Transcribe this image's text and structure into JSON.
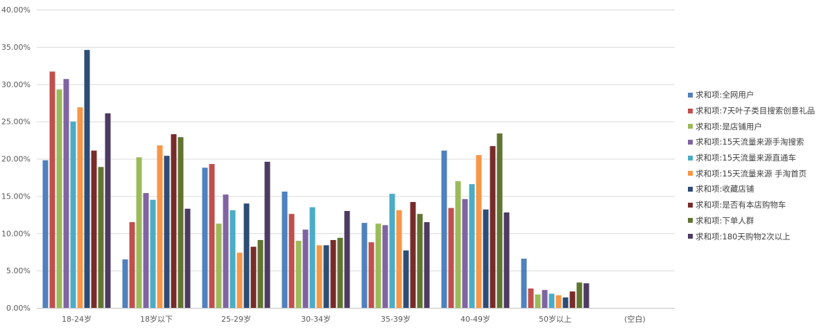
{
  "chart_data": {
    "type": "bar",
    "title": "",
    "xlabel": "",
    "ylabel": "",
    "ylim": [
      0,
      40
    ],
    "yticks": [
      "0.00%",
      "5.00%",
      "10.00%",
      "15.00%",
      "20.00%",
      "25.00%",
      "30.00%",
      "35.00%",
      "40.00%"
    ],
    "grid": true,
    "legend_position": "right",
    "categories": [
      "18-24岁",
      "18岁以下",
      "25-29岁",
      "30-34岁",
      "35-39岁",
      "40-49岁",
      "50岁以上",
      "(空白)"
    ],
    "series": [
      {
        "name": "求和项:全网用户",
        "color": "#4f81bd",
        "values": [
          19.8,
          6.5,
          18.8,
          15.6,
          11.4,
          21.1,
          6.6,
          null
        ]
      },
      {
        "name": "求和项:7天叶子类目搜索创意礼品",
        "color": "#c0504d",
        "values": [
          31.7,
          11.5,
          19.3,
          12.6,
          8.8,
          13.4,
          2.6,
          null
        ]
      },
      {
        "name": "求和项:是店铺用户",
        "color": "#9bbb59",
        "values": [
          29.3,
          20.2,
          11.3,
          9.0,
          11.3,
          17.0,
          1.8,
          null
        ]
      },
      {
        "name": "求和项:15天流量来源手淘搜索",
        "color": "#8064a2",
        "values": [
          30.7,
          15.4,
          15.2,
          10.5,
          11.1,
          14.6,
          2.4,
          null
        ]
      },
      {
        "name": "求和项:15天流量来源直通车",
        "color": "#4bacc6",
        "values": [
          25.0,
          14.5,
          13.1,
          13.5,
          15.3,
          16.6,
          1.9,
          null
        ]
      },
      {
        "name": "求和项:15天流量来源 手淘首页",
        "color": "#f79646",
        "values": [
          26.9,
          21.8,
          7.4,
          8.4,
          13.1,
          20.5,
          1.7,
          null
        ]
      },
      {
        "name": "求和项:收藏店铺",
        "color": "#2c4d75",
        "values": [
          34.6,
          20.4,
          14.0,
          8.4,
          7.7,
          13.2,
          1.4,
          null
        ]
      },
      {
        "name": "求和项:是否有本店购物车",
        "color": "#772c2a",
        "values": [
          21.1,
          23.3,
          8.2,
          9.1,
          14.2,
          21.7,
          2.2,
          null
        ]
      },
      {
        "name": "求和项:下单人群",
        "color": "#5f7530",
        "values": [
          18.9,
          22.9,
          9.1,
          9.4,
          12.6,
          23.4,
          3.4,
          null
        ]
      },
      {
        "name": "求和项:180天购物2次以上",
        "color": "#4d3b62",
        "values": [
          26.1,
          13.3,
          19.6,
          13.0,
          11.5,
          12.8,
          3.3,
          null
        ]
      }
    ]
  }
}
